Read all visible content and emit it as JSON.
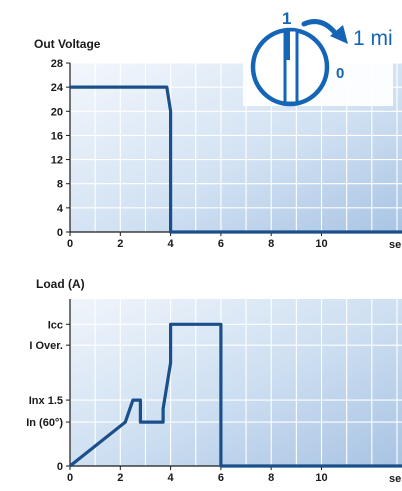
{
  "chart_data": [
    {
      "type": "line",
      "ylabel": "Out Voltage",
      "xlabel": "se",
      "x_ticks": [
        "0",
        "2",
        "4",
        "6",
        "8",
        "10"
      ],
      "y_ticks": [
        "0",
        "4",
        "8",
        "12",
        "16",
        "20",
        "24",
        "28"
      ],
      "xlim": [
        0,
        13.2
      ],
      "ylim": [
        0,
        28
      ],
      "grid": true,
      "series": [
        {
          "x": [
            0,
            3.85,
            4.0,
            4.0,
            13.2
          ],
          "y": [
            24,
            24,
            20,
            0,
            0
          ]
        }
      ]
    },
    {
      "type": "line",
      "ylabel": "Load (A)",
      "xlabel": "se",
      "x_ticks": [
        "0",
        "2",
        "4",
        "6",
        "8",
        "10"
      ],
      "y_ticks": [
        {
          "label": "0",
          "value": 0
        },
        {
          "label": "In (60°)",
          "value": 2
        },
        {
          "label": "Inx 1.5",
          "value": 3
        },
        {
          "label": "I Over.",
          "value": 5.5
        },
        {
          "label": "Icc",
          "value": 6.45
        }
      ],
      "xlim": [
        0,
        13.2
      ],
      "ylim": [
        0,
        7.6
      ],
      "grid": true,
      "series": [
        {
          "x": [
            0,
            2.2,
            2.5,
            2.6,
            2.8,
            2.8,
            3.7,
            3.7,
            4.0,
            4.0,
            6.0,
            6.0,
            13.2
          ],
          "y": [
            0,
            2.0,
            3.0,
            3.0,
            3.0,
            2.0,
            2.0,
            2.6,
            4.7,
            6.45,
            6.45,
            0,
            0
          ]
        }
      ]
    }
  ],
  "dial": {
    "label_on": "1",
    "label_off": "0",
    "time_label": "1 mi",
    "color": "#1565b6"
  },
  "colors": {
    "line": "#1a4f8a",
    "grid": "#ffffff",
    "panel_light": "#eef4fb",
    "panel_dark": "#b9d0e9"
  }
}
